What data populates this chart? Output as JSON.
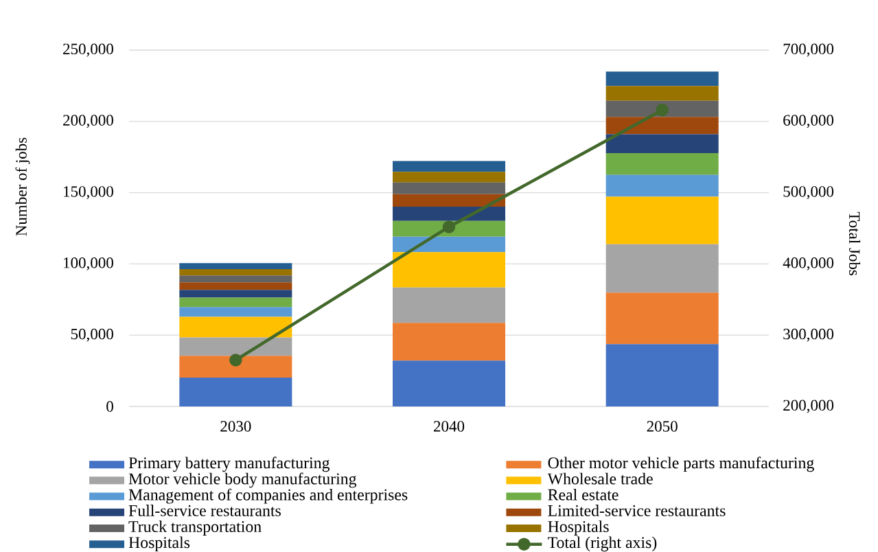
{
  "chart_data": {
    "type": "bar",
    "stacked": true,
    "ylabel": "Number of jobs",
    "y2label": "Total Jobs",
    "categories": [
      "2030",
      "2040",
      "2050"
    ],
    "ylim": [
      0,
      250000
    ],
    "yticks": [
      0,
      {
        "value": 50000,
        "label": "50,000"
      },
      {
        "value": 100000,
        "label": "100,000"
      },
      {
        "value": 150000,
        "label": "150,000"
      },
      {
        "value": 200000,
        "label": "200,000"
      },
      {
        "value": 250000,
        "label": "250,000"
      }
    ],
    "y2lim": [
      200000,
      700000
    ],
    "y2ticks": [
      {
        "value": 200000,
        "label": "200,000"
      },
      {
        "value": 300000,
        "label": "300,000"
      },
      {
        "value": 400000,
        "label": "400,000"
      },
      {
        "value": 500000,
        "label": "500,000"
      },
      {
        "value": 600000,
        "label": "600,000"
      },
      {
        "value": 700000,
        "label": "700,000"
      }
    ],
    "grid": "y",
    "legend": "bottom",
    "series": [
      {
        "name": "Primary battery manufacturing",
        "color": "#4472c4",
        "values": [
          20200,
          32200,
          43700
        ]
      },
      {
        "name": "Other motor vehicle parts manufacturing",
        "color": "#ed7d31",
        "values": [
          15300,
          26500,
          36200
        ]
      },
      {
        "name": "Motor vehicle body manufacturing",
        "color": "#a5a5a5",
        "values": [
          12900,
          24700,
          33900
        ]
      },
      {
        "name": "Wholesale trade",
        "color": "#ffc000",
        "values": [
          14500,
          24800,
          33300
        ]
      },
      {
        "name": "Management of companies and enterprises",
        "color": "#5b9bd5",
        "values": [
          6800,
          10900,
          15400
        ]
      },
      {
        "name": "Real estate",
        "color": "#70ad47",
        "values": [
          6600,
          11100,
          15200
        ]
      },
      {
        "name": "Full-service restaurants",
        "color": "#264478",
        "values": [
          5500,
          10000,
          13300
        ]
      },
      {
        "name": "Limited-service restaurants",
        "color": "#9e480e",
        "values": [
          5300,
          8800,
          12100
        ]
      },
      {
        "name": "Truck transportation",
        "color": "#636363",
        "values": [
          4800,
          8100,
          11400
        ]
      },
      {
        "name": "Hospitals",
        "color": "#997300",
        "values": [
          4400,
          7500,
          10300
        ]
      },
      {
        "name": "Hospitals",
        "color": "#255e91",
        "values": [
          4200,
          7600,
          10100
        ]
      },
      {
        "name": "Total (right axis)",
        "type": "line",
        "axis": "y2",
        "color": "#43682b",
        "marker": "circle",
        "values": [
          265000,
          452000,
          616000
        ]
      }
    ]
  }
}
